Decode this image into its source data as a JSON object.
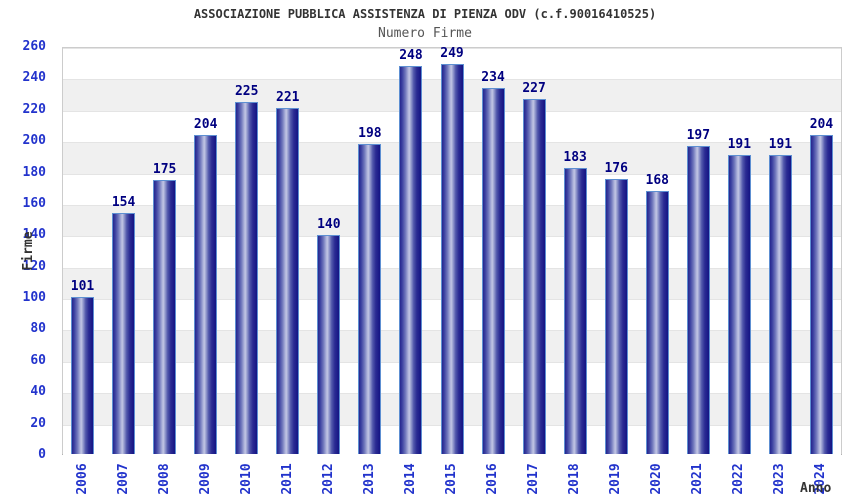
{
  "chart_data": {
    "type": "bar",
    "title": "ASSOCIAZIONE PUBBLICA ASSISTENZA DI PIENZA ODV (c.f.90016410525)",
    "subtitle": "Numero Firme",
    "xlabel": "Anno",
    "ylabel": "Firme",
    "categories": [
      "2006",
      "2007",
      "2008",
      "2009",
      "2010",
      "2011",
      "2012",
      "2013",
      "2014",
      "2015",
      "2016",
      "2017",
      "2018",
      "2019",
      "2020",
      "2021",
      "2022",
      "2023",
      "2024"
    ],
    "values": [
      101,
      154,
      175,
      204,
      225,
      221,
      140,
      198,
      248,
      249,
      234,
      227,
      183,
      176,
      168,
      197,
      191,
      191,
      204
    ],
    "ylim": [
      0,
      260
    ],
    "ytick_step": 20,
    "grid": "horizontal-alternating-bands",
    "legend": "none",
    "value_labels_shown": true,
    "colors": {
      "tick_label": "#2233cc",
      "value_label": "#000080",
      "bar_dark": "#1c1c8f",
      "bar_highlight": "#c2c6e4",
      "bar_border": "#5d8fd2",
      "band_gray": "#f0f0f0",
      "band_white": "#ffffff",
      "grid_line": "#e4e4e4",
      "plot_border": "#cccccc",
      "title_color": "#333333",
      "subtitle_color": "#555555"
    }
  }
}
